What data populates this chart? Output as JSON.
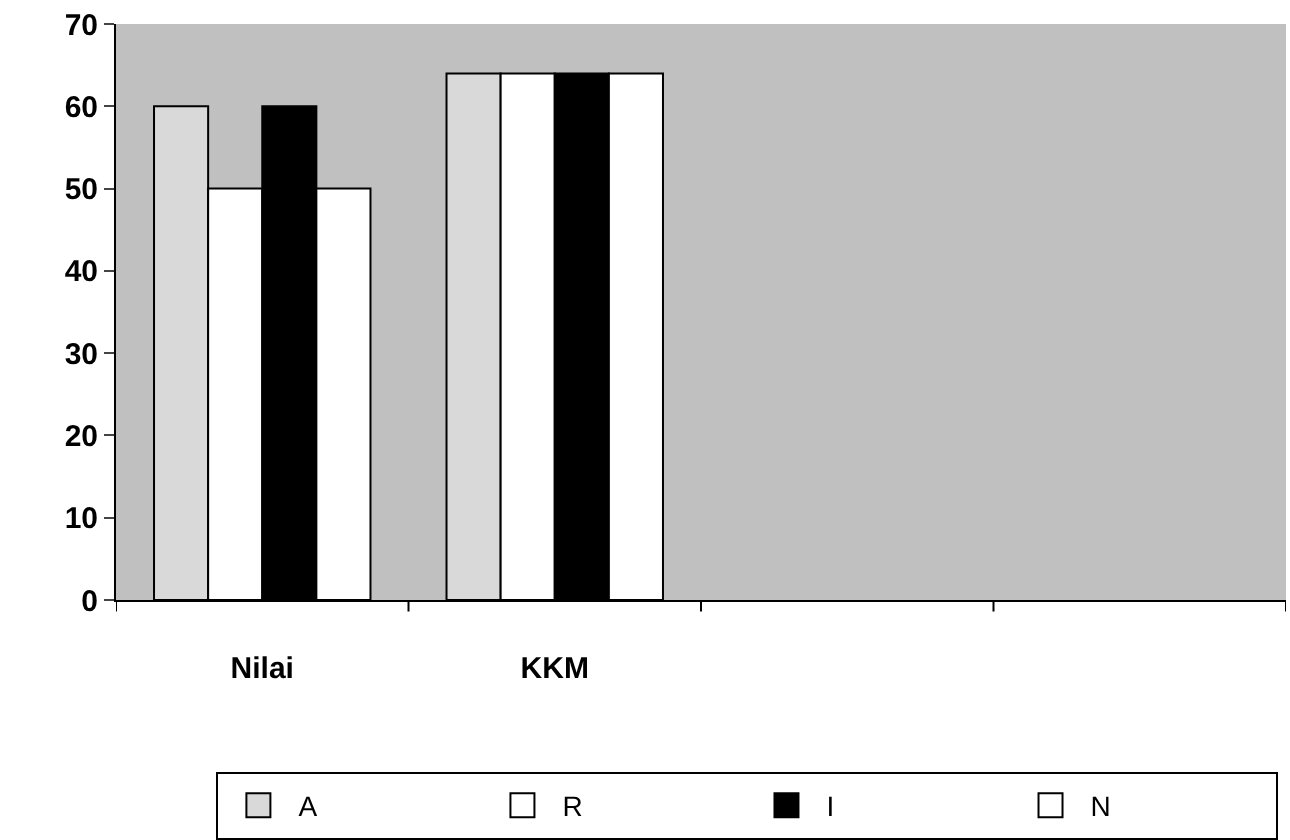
{
  "chart_data": {
    "type": "bar",
    "categories": [
      "Nilai",
      "KKM",
      null,
      null
    ],
    "series": [
      {
        "name": "A",
        "color": "#d9d9d9",
        "values": [
          60,
          64,
          null,
          null
        ]
      },
      {
        "name": "R",
        "color": "#ffffff",
        "values": [
          50,
          64,
          null,
          null
        ]
      },
      {
        "name": "I",
        "color": "#000000",
        "values": [
          60,
          64,
          null,
          null
        ]
      },
      {
        "name": "N",
        "color": "#ffffff",
        "values": [
          50,
          64,
          null,
          null
        ]
      }
    ],
    "ylim": [
      0,
      70
    ],
    "yticks": [
      0,
      10,
      20,
      30,
      40,
      50,
      60,
      70
    ],
    "grid": false,
    "legend": "bottom"
  }
}
